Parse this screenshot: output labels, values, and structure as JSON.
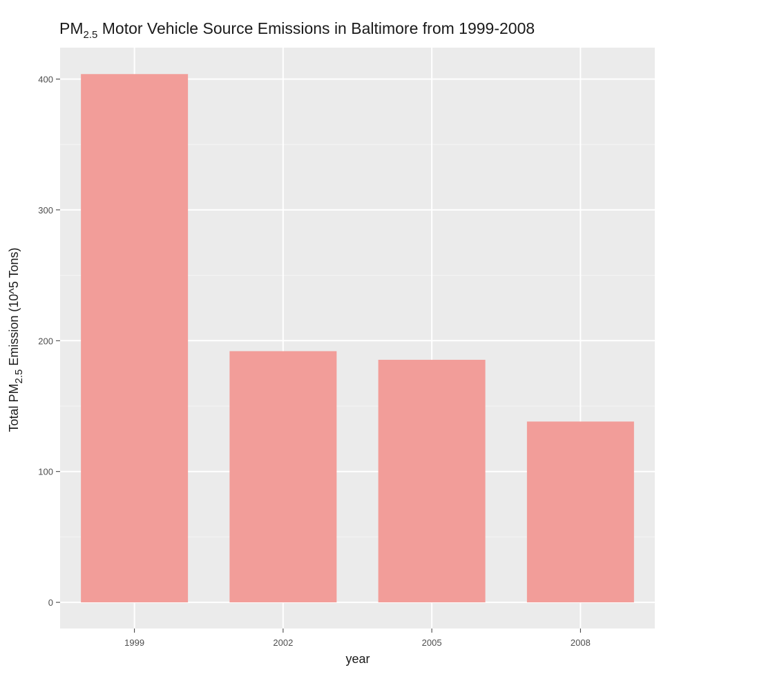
{
  "chart_data": {
    "type": "bar",
    "title_main": "PM",
    "title_sub": "2.5",
    "title_rest": " Motor Vehicle Source Emissions in Baltimore from 1999-2008",
    "xlabel": "year",
    "ylabel_pre": "Total PM",
    "ylabel_sub": "2.5",
    "ylabel_post": " Emission (10^5 Tons)",
    "categories": [
      "1999",
      "2002",
      "2005",
      "2008"
    ],
    "values": [
      403.8,
      192.0,
      185.4,
      138.2
    ],
    "ylim": [
      -20,
      424
    ],
    "yticks": [
      0,
      100,
      200,
      300,
      400
    ],
    "ytick_labels": [
      "0",
      "100",
      "200",
      "300",
      "400"
    ],
    "grid": true,
    "colors": {
      "bar": "#f29d99",
      "panel": "#ebebeb",
      "grid_major": "#ffffff",
      "grid_minor": "#f5f5f5",
      "tick": "#333333"
    }
  }
}
